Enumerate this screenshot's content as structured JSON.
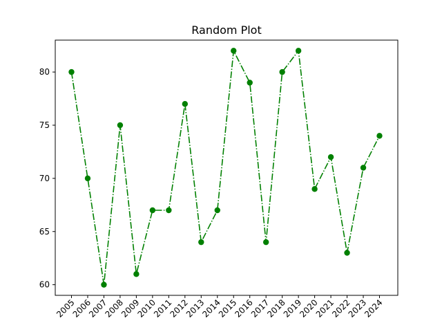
{
  "chart_data": {
    "type": "line",
    "title": "Random Plot",
    "xlabel": "",
    "ylabel": "",
    "x": [
      "2005",
      "2006",
      "2007",
      "2008",
      "2009",
      "2010",
      "2011",
      "2012",
      "2013",
      "2014",
      "2015",
      "2016",
      "2017",
      "2018",
      "2019",
      "2020",
      "2021",
      "2022",
      "2023",
      "2024"
    ],
    "series": [
      {
        "values": [
          80,
          70,
          60,
          75,
          61,
          67,
          67,
          77,
          64,
          67,
          82,
          79,
          64,
          80,
          82,
          69,
          72,
          63,
          71,
          74
        ],
        "color": "#008000",
        "line_style": "dash-dot",
        "marker": "circle"
      }
    ],
    "ylim": [
      59.0,
      83.0
    ],
    "yticks": [
      60,
      65,
      70,
      75,
      80
    ],
    "grid": false,
    "legend": "none"
  }
}
